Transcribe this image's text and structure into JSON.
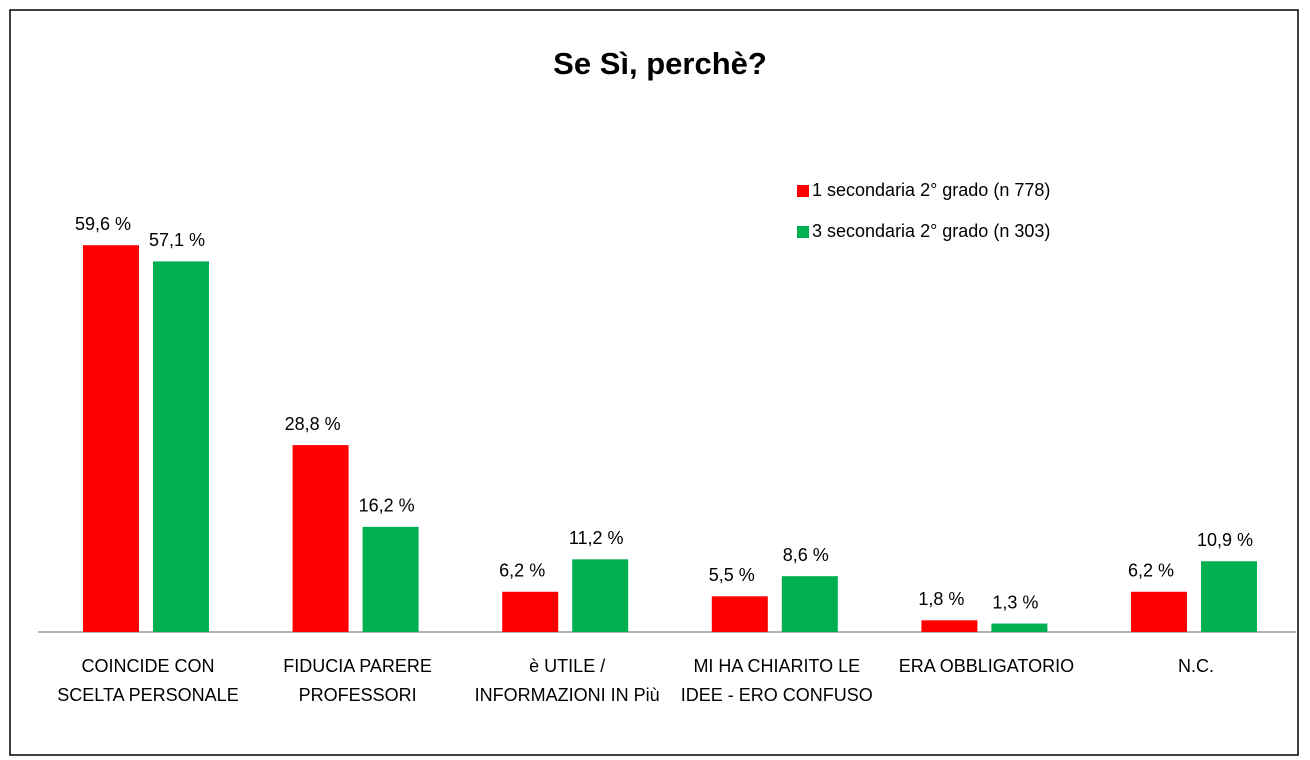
{
  "chart_data": {
    "type": "bar",
    "title": "Se Sì, perchè?",
    "categories": [
      "COINCIDE CON SCELTA PERSONALE",
      "FIDUCIA PARERE PROFESSORI",
      "è UTILE / INFORMAZIONI IN Più",
      "MI HA CHIARITO LE IDEE - ERO CONFUSO",
      "ERA OBBLIGATORIO",
      "N.C."
    ],
    "series": [
      {
        "name": "1 secondaria 2° grado (n 778)",
        "color": "#ff0000",
        "values": [
          59.6,
          28.8,
          6.2,
          5.5,
          1.8,
          6.2
        ],
        "value_labels": [
          "59,6 %",
          "28,8 %",
          "6,2 %",
          "5,5 %",
          "1,8 %",
          "6,2 %"
        ]
      },
      {
        "name": "3 secondaria 2° grado (n 303)",
        "color": "#00b050",
        "values": [
          57.1,
          16.2,
          11.2,
          8.6,
          1.3,
          10.9
        ],
        "value_labels": [
          "57,1 %",
          "16,2 %",
          "11,2 %",
          "8,6 %",
          "1,3 %",
          "10,9 %"
        ]
      }
    ],
    "legend": "top-right"
  }
}
